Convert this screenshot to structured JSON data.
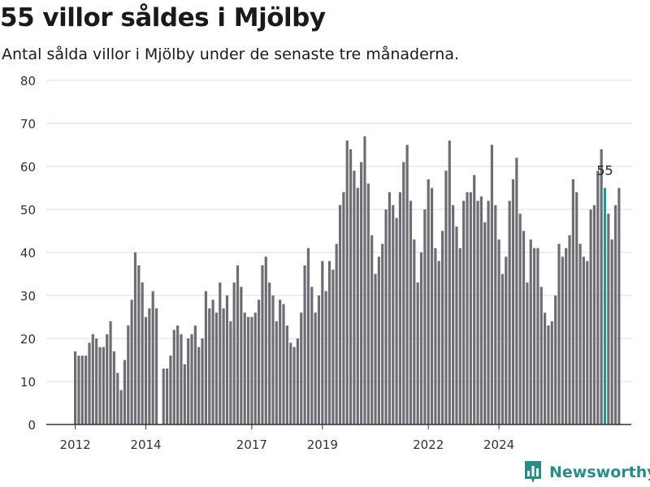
{
  "title": "55 villor såldes i Mjölby",
  "subtitle": "Antal sålda villor i Mjölby under de senaste tre månaderna.",
  "brand": {
    "name": "Newsworthy",
    "logo_icon": "bar-chart-logo-icon",
    "color": "#2b8c86"
  },
  "colors": {
    "bar": "#6e6d73",
    "highlight": "#1b9a94",
    "grid": "#dddddd",
    "axis": "#333333"
  },
  "chart_data": {
    "type": "bar",
    "ylim": [
      0,
      80
    ],
    "yticks": [
      0,
      10,
      20,
      30,
      40,
      50,
      60,
      70,
      80
    ],
    "grid": true,
    "x_ticks": [
      {
        "label": "2012",
        "index": 0
      },
      {
        "label": "2014",
        "index": 20
      },
      {
        "label": "2017",
        "index": 50
      },
      {
        "label": "2019",
        "index": 70
      },
      {
        "label": "2022",
        "index": 100
      },
      {
        "label": "2024",
        "index": 120
      }
    ],
    "values": [
      17,
      16,
      16,
      16,
      19,
      21,
      20,
      18,
      18,
      21,
      24,
      17,
      12,
      8,
      15,
      23,
      29,
      40,
      37,
      33,
      25,
      27,
      31,
      27,
      null,
      13,
      13,
      16,
      22,
      23,
      21,
      14,
      20,
      21,
      23,
      18,
      20,
      31,
      27,
      29,
      26,
      33,
      27,
      30,
      24,
      33,
      37,
      32,
      26,
      25,
      25,
      26,
      29,
      37,
      39,
      33,
      30,
      24,
      29,
      28,
      23,
      19,
      18,
      20,
      26,
      37,
      41,
      32,
      26,
      30,
      38,
      31,
      38,
      36,
      42,
      51,
      54,
      66,
      64,
      59,
      55,
      61,
      67,
      56,
      44,
      35,
      39,
      42,
      50,
      54,
      51,
      48,
      54,
      61,
      65,
      52,
      43,
      33,
      40,
      50,
      57,
      55,
      41,
      38,
      45,
      59,
      66,
      51,
      46,
      41,
      52,
      54,
      54,
      58,
      52,
      53,
      47,
      52,
      65,
      51,
      43,
      35,
      39,
      52,
      57,
      62,
      49,
      45,
      33,
      43,
      41,
      41,
      32,
      26,
      23,
      24,
      30,
      42,
      39,
      41,
      44,
      57,
      54,
      42,
      39,
      38,
      50,
      51,
      59,
      64,
      55,
      49,
      43,
      51,
      55
    ],
    "highlight_index": 150,
    "highlight_label": "55"
  }
}
